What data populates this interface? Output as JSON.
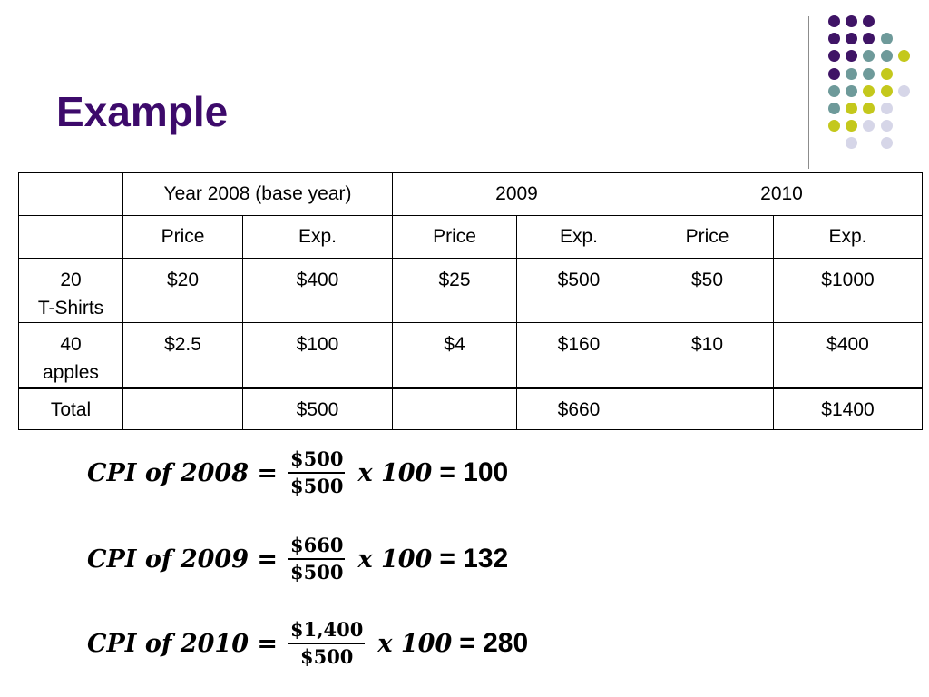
{
  "slide": {
    "title": "Example"
  },
  "colors": {
    "title": "#3d0a6b",
    "dot_purple": "#3f1466",
    "dot_teal": "#6e9a9a",
    "dot_yellow": "#c4c81c",
    "dot_lavender": "#d6d6e8"
  },
  "table": {
    "header": [
      "",
      "Year 2008 (base year)",
      "2009",
      "2010"
    ],
    "subheader": [
      "",
      "Price",
      "Exp.",
      "Price",
      "Exp.",
      "Price",
      "Exp."
    ],
    "rows": [
      {
        "item_line1": "20",
        "item_line2": "T-Shirts",
        "values": [
          "$20",
          "$400",
          "$25",
          "$500",
          "$50",
          "$1000"
        ]
      },
      {
        "item_line1": "40",
        "item_line2": "apples",
        "values": [
          "$2.5",
          "$100",
          "$4",
          "$160",
          "$10",
          "$400"
        ]
      }
    ],
    "total": {
      "label": "Total",
      "values": [
        "",
        "$500",
        "",
        "$660",
        "",
        "$1400"
      ]
    }
  },
  "formulas": [
    {
      "lhs": "CPI of 2008 =",
      "numerator": "$500",
      "denominator": "$500",
      "times": "x 100",
      "result": "= 100"
    },
    {
      "lhs": "CPI of 2009 =",
      "numerator": "$660",
      "denominator": "$500",
      "times": "x 100",
      "result": "= 132"
    },
    {
      "lhs": "CPI of 2010 =",
      "numerator": "$1,400",
      "denominator": "$500",
      "times": "x 100",
      "result": "= 280"
    }
  ]
}
